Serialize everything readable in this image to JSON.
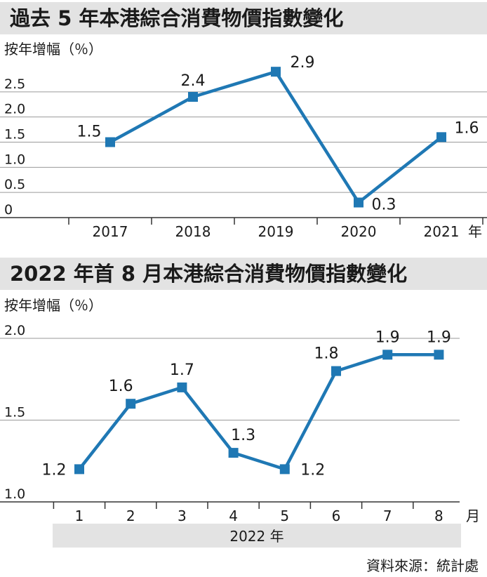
{
  "titles": {
    "panel1": "過去 5 年本港綜合消費物價指數變化",
    "panel2": "2022 年首 8 月本港綜合消費物價指數變化"
  },
  "source": "資料來源：統計處",
  "colors": {
    "line": "#1f78b4",
    "title_bg": "#e3e3e3",
    "grid": "#9a9a9a",
    "axis": "#333333"
  },
  "chart_data": [
    {
      "type": "line",
      "title": "過去 5 年本港綜合消費物價指數變化",
      "ylabel": "按年增幅（％）",
      "xlabel": "年",
      "categories": [
        "2017",
        "2018",
        "2019",
        "2020",
        "2021"
      ],
      "values": [
        1.5,
        2.4,
        2.9,
        0.3,
        1.6
      ],
      "data_labels": [
        "1.5",
        "2.4",
        "2.9",
        "0.3",
        "1.6"
      ],
      "yticks": [
        "0",
        "0.5",
        "1.0",
        "1.5",
        "2.0",
        "2.5"
      ],
      "ylim": [
        0,
        3.0
      ],
      "grid": true
    },
    {
      "type": "line",
      "title": "2022 年首 8 月本港綜合消費物價指數變化",
      "ylabel": "按年增幅（％）",
      "xlabel": "月",
      "xgroup_label": "2022 年",
      "categories": [
        "1",
        "2",
        "3",
        "4",
        "5",
        "6",
        "7",
        "8"
      ],
      "values": [
        1.2,
        1.6,
        1.7,
        1.3,
        1.2,
        1.8,
        1.9,
        1.9
      ],
      "data_labels": [
        "1.2",
        "1.6",
        "1.7",
        "1.3",
        "1.2",
        "1.8",
        "1.9",
        "1.9"
      ],
      "yticks": [
        "1.0",
        "1.5",
        "2.0"
      ],
      "ylim": [
        1.0,
        2.0
      ],
      "grid": true
    }
  ]
}
